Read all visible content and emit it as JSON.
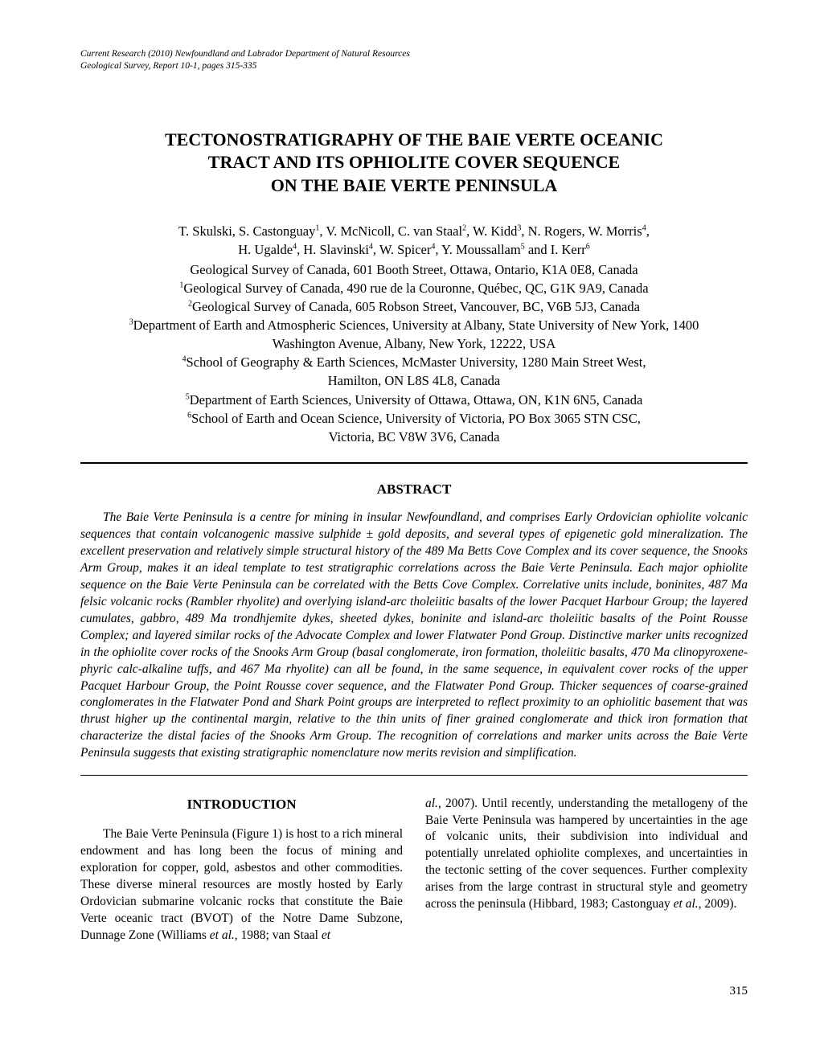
{
  "citation_line1": "Current Research (2010) Newfoundland and Labrador Department of Natural Resources",
  "citation_line2": "Geological Survey, Report 10-1, pages 315-335",
  "title_line1": "TECTONOSTRATIGRAPHY OF THE BAIE VERTE OCEANIC",
  "title_line2": "TRACT AND ITS OPHIOLITE COVER SEQUENCE",
  "title_line3": "ON THE BAIE VERTE PENINSULA",
  "authors_line1_pre": "T. Skulski, S. Castonguay",
  "authors_line1_mid1": ", V. McNicoll, C. van Staal",
  "authors_line1_mid2": ", W. Kidd",
  "authors_line1_mid3": ", N. Rogers, W. Morris",
  "authors_line1_end": ",",
  "authors_line2_pre": "H. Ugalde",
  "authors_line2_mid1": ", H. Slavinski",
  "authors_line2_mid2": ", W. Spicer",
  "authors_line2_mid3": ", Y. Moussallam",
  "authors_line2_mid4": " and I. Kerr",
  "aff1": "Geological Survey of Canada, 601 Booth Street, Ottawa, Ontario, K1A 0E8, Canada",
  "aff2_pre": "Geological Survey of Canada, 490 rue de la Couronne, Québec, QC, G1K 9A9, Canada",
  "aff3_pre": "Geological Survey of Canada, 605 Robson Street, Vancouver, BC, V6B 5J3, Canada",
  "aff4_pre": "Department of Earth and Atmospheric Sciences, University at Albany, State University of New York, 1400",
  "aff4_cont": "Washington Avenue, Albany, New York, 12222, USA",
  "aff5_pre": "School of Geography & Earth Sciences, McMaster University, 1280 Main Street West,",
  "aff5_cont": "Hamilton, ON L8S 4L8, Canada",
  "aff6_pre": "Department of Earth Sciences, University of Ottawa, Ottawa, ON, K1N 6N5, Canada",
  "aff7_pre": "School of Earth and Ocean Science, University of Victoria, PO Box 3065 STN CSC,",
  "aff7_cont": "Victoria, BC V8W 3V6, Canada",
  "abstract_heading": "ABSTRACT",
  "abstract_body": "The Baie Verte Peninsula is a centre for mining in insular Newfoundland, and comprises Early Ordovician ophiolite volcanic sequences that contain volcanogenic massive sulphide ± gold deposits, and several types of epigenetic gold mineralization. The excellent preservation and relatively simple structural history of the 489 Ma Betts Cove Complex and its cover sequence, the Snooks Arm Group, makes it an ideal template to test stratigraphic correlations across the Baie Verte Peninsula. Each major ophiolite sequence on the Baie Verte Peninsula can be correlated with the Betts Cove Complex. Correlative units include, boninites, 487 Ma felsic volcanic rocks (Rambler rhyolite) and overlying island-arc tholeiitic basalts of the lower Pacquet Harbour Group; the layered cumulates, gabbro, 489 Ma trondhjemite dykes, sheeted dykes, boninite and island-arc tholeiitic basalts of the Point Rousse Complex; and layered similar rocks of the Advocate Complex and lower Flatwater Pond Group. Distinctive marker units recognized in the ophiolite cover rocks of the Snooks Arm Group (basal conglomerate, iron formation, tholeiitic basalts, 470 Ma clinopyroxene-phyric calc-alkaline tuffs, and 467 Ma rhyolite) can all be found, in the same sequence, in equivalent cover rocks of the upper Pacquet Harbour Group, the Point Rousse cover sequence, and the Flatwater Pond Group. Thicker sequences of coarse-grained conglomerates in the Flatwater Pond and Shark Point groups are interpreted to reflect proximity to an ophiolitic basement that was thrust higher up the continental margin, relative to the thin units of finer grained conglomerate and thick iron formation that characterize the distal facies of the Snooks Arm Group. The recognition of correlations and marker units across the Baie Verte Peninsula suggests that existing stratigraphic nomenclature now merits revision and simplification.",
  "intro_heading": "INTRODUCTION",
  "intro_p1_a": "The Baie Verte Peninsula (Figure 1) is host to a rich mineral endowment and has long been the focus of mining and exploration for copper, gold, asbestos and other commodities. These diverse mineral resources are mostly hosted by Early Ordovician submarine volcanic rocks that constitute the Baie Verte oceanic tract (BVOT) of the Notre Dame Subzone, Dunnage Zone (Williams ",
  "intro_p1_b": "et al.",
  "intro_p1_c": ", 1988; van Staal ",
  "intro_p1_d": "et ",
  "intro_p2_a": "al.",
  "intro_p2_b": ", 2007). Until recently, understanding the metallogeny of the Baie Verte Peninsula was hampered by uncertainties in the age of volcanic units, their subdivision into individual and potentially unrelated ophiolite complexes, and uncertainties in the tectonic setting of the cover sequences. Further complexity arises from the large contrast in structural style and geometry across the peninsula (Hibbard, 1983; Castonguay ",
  "intro_p2_c": "et al.",
  "intro_p2_d": ", 2009).",
  "page_number": "315"
}
